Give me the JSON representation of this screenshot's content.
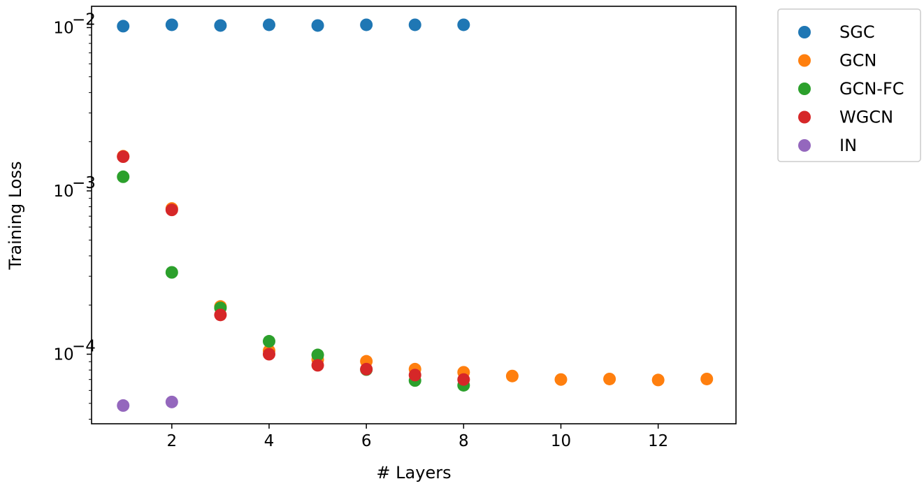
{
  "chart_data": {
    "type": "scatter",
    "title": "",
    "xlabel": "# Layers",
    "ylabel": "Training Loss",
    "yscale": "log",
    "xlim": [
      0.35,
      13.6
    ],
    "ylim": [
      3.75e-05,
      0.0135
    ],
    "xticks": [
      2,
      4,
      6,
      8,
      10,
      12
    ],
    "yticks": [
      {
        "value": 0.0001,
        "base": "10",
        "exp": "−4"
      },
      {
        "value": 0.001,
        "base": "10",
        "exp": "−3"
      },
      {
        "value": 0.01,
        "base": "10",
        "exp": "−2"
      }
    ],
    "grid": false,
    "legend_position": "outside-right-top",
    "series": [
      {
        "name": "SGC",
        "color": "#1f77b4",
        "x": [
          1,
          2,
          3,
          4,
          5,
          6,
          7,
          8
        ],
        "y": [
          0.0102,
          0.0104,
          0.0103,
          0.0104,
          0.0103,
          0.0104,
          0.0104,
          0.0104
        ]
      },
      {
        "name": "GCN",
        "color": "#ff7f0e",
        "x": [
          1,
          2,
          3,
          4,
          5,
          6,
          7,
          8,
          9,
          10,
          11,
          12,
          13
        ],
        "y": [
          0.00163,
          0.00078,
          0.000196,
          0.000105,
          9.25e-05,
          9.05e-05,
          8.1e-05,
          7.75e-05,
          7.35e-05,
          7e-05,
          7.05e-05,
          6.95e-05,
          7.05e-05
        ]
      },
      {
        "name": "GCN-FC",
        "color": "#2ca02c",
        "x": [
          1,
          2,
          3,
          4,
          5,
          6,
          7,
          8
        ],
        "y": [
          0.00122,
          0.000317,
          0.000192,
          0.00012,
          9.9e-05,
          8.05e-05,
          6.9e-05,
          6.45e-05
        ]
      },
      {
        "name": "WGCN",
        "color": "#d62728",
        "x": [
          1,
          2,
          3,
          4,
          5,
          6,
          7,
          8
        ],
        "y": [
          0.00162,
          0.000765,
          0.000174,
          0.0001,
          8.55e-05,
          8.1e-05,
          7.45e-05,
          7e-05
        ]
      },
      {
        "name": "IN",
        "color": "#9467bd",
        "x": [
          1,
          2
        ],
        "y": [
          4.85e-05,
          5.1e-05
        ]
      }
    ]
  }
}
